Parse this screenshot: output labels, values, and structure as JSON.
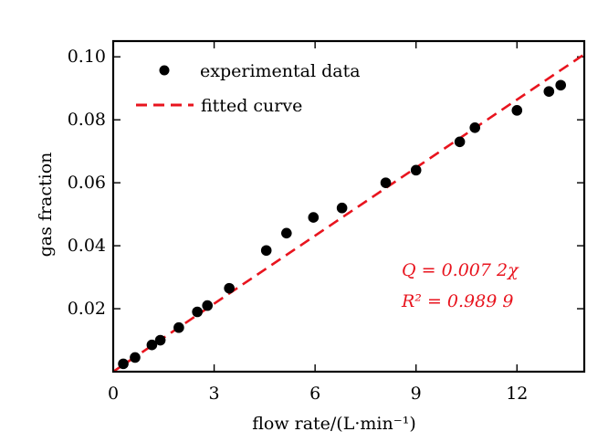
{
  "chart_data": {
    "type": "scatter",
    "title": "",
    "xlabel": "flow rate/(L·min⁻¹)",
    "ylabel": "gas fraction",
    "xlim": [
      0,
      14
    ],
    "ylim": [
      0,
      0.105
    ],
    "xticks": [
      0,
      3,
      6,
      9,
      12
    ],
    "xtick_labels": [
      "0",
      "3",
      "6",
      "9",
      "12"
    ],
    "yticks": [
      0.02,
      0.04,
      0.06,
      0.08,
      0.1
    ],
    "ytick_labels": [
      "0.02",
      "0.04",
      "0.06",
      "0.08",
      "0.10"
    ],
    "grid": false,
    "legend_position": "top-left",
    "series": [
      {
        "name": "experimental data",
        "kind": "scatter",
        "color": "#000000",
        "x": [
          0.3,
          0.65,
          1.15,
          1.4,
          1.95,
          2.5,
          2.8,
          3.45,
          4.55,
          5.15,
          5.95,
          6.8,
          8.1,
          9.0,
          10.3,
          10.75,
          12.0,
          12.95,
          13.3
        ],
        "y": [
          0.0025,
          0.0045,
          0.0085,
          0.01,
          0.014,
          0.019,
          0.021,
          0.0265,
          0.0385,
          0.044,
          0.049,
          0.052,
          0.06,
          0.064,
          0.073,
          0.0775,
          0.083,
          0.089,
          0.091
        ]
      },
      {
        "name": "fitted curve",
        "kind": "line",
        "style": "dashed",
        "color": "#e8141e",
        "x": [
          0,
          14
        ],
        "y": [
          0,
          0.1008
        ]
      }
    ],
    "annotations": [
      {
        "text": "Q = 0.007 2χ",
        "color": "#e8141e"
      },
      {
        "text": "R² = 0.989 9",
        "color": "#e8141e"
      }
    ]
  }
}
